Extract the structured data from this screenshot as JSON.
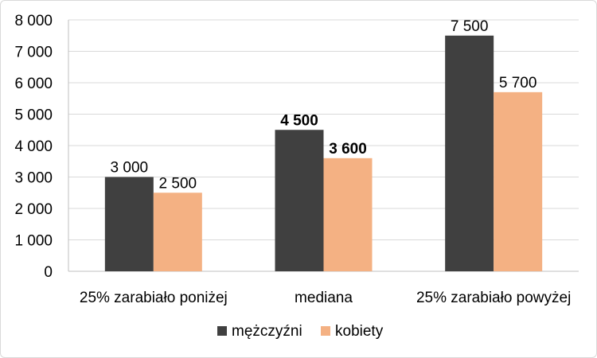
{
  "chart_data": {
    "type": "bar",
    "categories": [
      "25% zarabiało poniżej",
      "mediana",
      "25% zarabiało powyżej"
    ],
    "series": [
      {
        "name": "mężczyźni",
        "color": "#404040",
        "values": [
          3000,
          4500,
          7500
        ],
        "labels": [
          "3 000",
          "4 500",
          "7 500"
        ]
      },
      {
        "name": "kobiety",
        "color": "#f4b183",
        "values": [
          2500,
          3600,
          5700
        ],
        "labels": [
          "2 500",
          "3 600",
          "5 700"
        ]
      }
    ],
    "bold_label_category_index": 1,
    "ylim": [
      0,
      8000
    ],
    "yticks": [
      0,
      1000,
      2000,
      3000,
      4000,
      5000,
      6000,
      7000,
      8000
    ],
    "ytick_labels": [
      "0",
      "1 000",
      "2 000",
      "3 000",
      "4 000",
      "5 000",
      "6 000",
      "7 000",
      "8 000"
    ],
    "grid": true,
    "legend_position": "bottom"
  }
}
